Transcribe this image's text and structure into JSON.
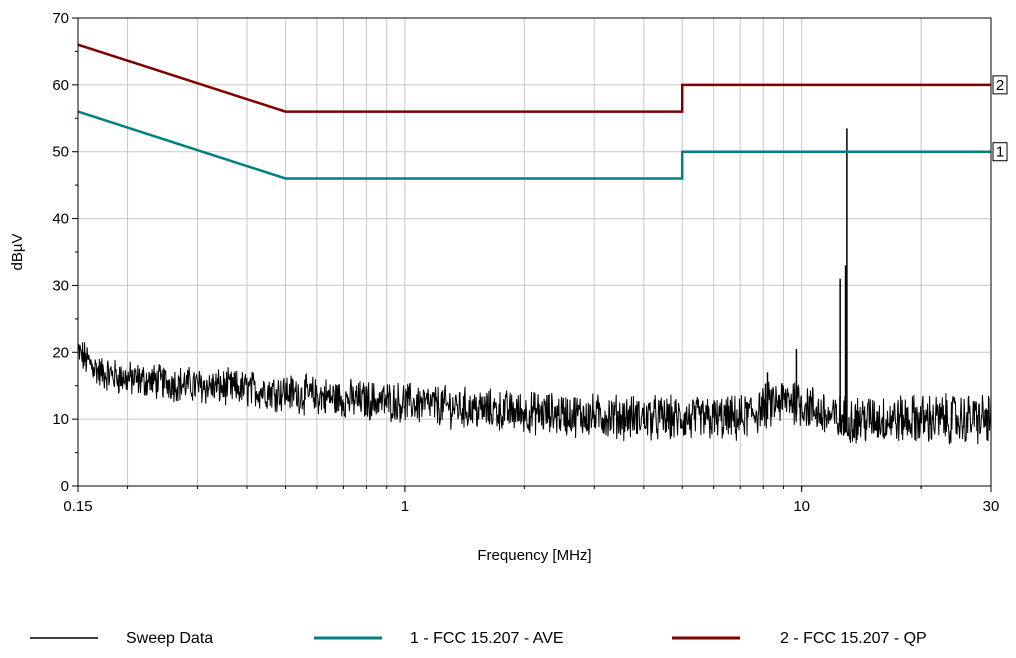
{
  "chart_data": {
    "type": "line",
    "xlabel": "Frequency [MHz]",
    "ylabel": "dBµV",
    "xscale": "log",
    "xlim": [
      0.15,
      30
    ],
    "ylim": [
      0,
      70
    ],
    "grid": true,
    "legend_placement": "bottom",
    "x_tick_labels": [
      {
        "value": 0.15,
        "label": "0.15"
      },
      {
        "value": 1,
        "label": "1"
      },
      {
        "value": 10,
        "label": "10"
      },
      {
        "value": 30,
        "label": "30"
      }
    ],
    "y_ticks": [
      0,
      10,
      20,
      30,
      40,
      50,
      60,
      70
    ],
    "series": [
      {
        "name": "Sweep Data",
        "color": "#000000",
        "kind": "noisy-trace",
        "points": [
          [
            0.15,
            20
          ],
          [
            0.17,
            17
          ],
          [
            0.2,
            16
          ],
          [
            0.25,
            15.5
          ],
          [
            0.3,
            15
          ],
          [
            0.4,
            14.5
          ],
          [
            0.5,
            14
          ],
          [
            0.7,
            13
          ],
          [
            1,
            12.5
          ],
          [
            1.5,
            11.5
          ],
          [
            2,
            11
          ],
          [
            3,
            10.5
          ],
          [
            5,
            10
          ],
          [
            7,
            10
          ],
          [
            8.2,
            12
          ],
          [
            9.5,
            13
          ],
          [
            12,
            10
          ],
          [
            20,
            10
          ],
          [
            30,
            10
          ]
        ],
        "spikes": [
          {
            "x": 8.2,
            "y": 17
          },
          {
            "x": 9.7,
            "y": 20.5
          },
          {
            "x": 12.5,
            "y": 31
          },
          {
            "x": 12.9,
            "y": 33
          },
          {
            "x": 13.0,
            "y": 53.5
          }
        ]
      },
      {
        "name": "1 - FCC 15.207 - AVE",
        "marker": "1",
        "color": "#008080",
        "points": [
          [
            0.15,
            56
          ],
          [
            0.5,
            46
          ],
          [
            5,
            46
          ],
          [
            5,
            50
          ],
          [
            30,
            50
          ]
        ]
      },
      {
        "name": "2 - FCC 15.207 - QP",
        "marker": "2",
        "color": "#800000",
        "points": [
          [
            0.15,
            66
          ],
          [
            0.5,
            56
          ],
          [
            5,
            56
          ],
          [
            5,
            60
          ],
          [
            30,
            60
          ]
        ]
      }
    ]
  }
}
